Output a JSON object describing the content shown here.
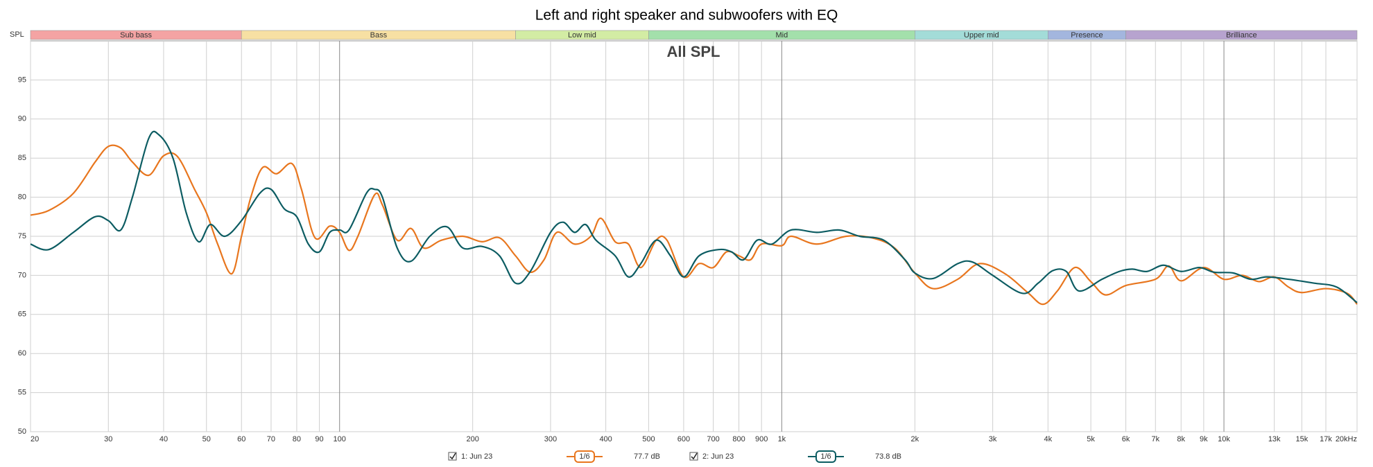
{
  "chart_data": {
    "type": "line",
    "title": "Left and right speaker and subwoofers with EQ",
    "annotation": "All SPL",
    "y_label": "SPL",
    "log_x": true,
    "grid": true,
    "xlim": [
      20,
      20000
    ],
    "ylim": [
      50,
      100
    ],
    "xticks": [
      20,
      30,
      40,
      50,
      60,
      70,
      80,
      90,
      100,
      200,
      300,
      400,
      500,
      600,
      700,
      800,
      900,
      {
        "value": 1000,
        "label": "1k"
      },
      {
        "value": 2000,
        "label": "2k"
      },
      {
        "value": 3000,
        "label": "3k"
      },
      {
        "value": 4000,
        "label": "4k"
      },
      {
        "value": 5000,
        "label": "5k"
      },
      {
        "value": 6000,
        "label": "6k"
      },
      {
        "value": 7000,
        "label": "7k"
      },
      {
        "value": 8000,
        "label": "8k"
      },
      {
        "value": 9000,
        "label": "9k"
      },
      {
        "value": 10000,
        "label": "10k"
      },
      {
        "value": 13000,
        "label": "13k"
      },
      {
        "value": 15000,
        "label": "15k"
      },
      {
        "value": 17000,
        "label": "17k"
      },
      {
        "value": 20000,
        "label": "20kHz"
      }
    ],
    "yticks": [
      50,
      55,
      60,
      65,
      70,
      75,
      80,
      85,
      90,
      95
    ],
    "bands": [
      {
        "name": "Sub bass",
        "from": 20,
        "to": 60,
        "color": "#f4a3a3"
      },
      {
        "name": "Bass",
        "from": 60,
        "to": 250,
        "color": "#f7e0a3"
      },
      {
        "name": "Low mid",
        "from": 250,
        "to": 500,
        "color": "#d3eca4"
      },
      {
        "name": "Mid",
        "from": 500,
        "to": 2000,
        "color": "#a3e0ab"
      },
      {
        "name": "Upper mid",
        "from": 2000,
        "to": 4000,
        "color": "#a3dcd8"
      },
      {
        "name": "Presence",
        "from": 4000,
        "to": 6000,
        "color": "#a3b6de"
      },
      {
        "name": "Brilliance",
        "from": 6000,
        "to": 20000,
        "color": "#b7a3cf"
      }
    ],
    "series": [
      {
        "name": "1: Jun 23",
        "color": "#e8761e",
        "smoothing": "1/6",
        "level": "77.7 dB",
        "x": [
          20,
          22,
          25,
          28,
          30,
          32,
          34,
          37,
          40,
          43,
          47,
          50,
          53,
          57,
          60,
          63,
          67,
          72,
          78,
          82,
          88,
          95,
          100,
          105,
          110,
          120,
          125,
          135,
          145,
          155,
          170,
          190,
          210,
          230,
          250,
          270,
          290,
          310,
          340,
          370,
          390,
          420,
          450,
          480,
          520,
          550,
          600,
          650,
          700,
          750,
          800,
          850,
          900,
          1000,
          1050,
          1200,
          1400,
          1600,
          1800,
          2000,
          2200,
          2500,
          2800,
          3200,
          3600,
          3900,
          4200,
          4600,
          5000,
          5400,
          6000,
          7000,
          7500,
          8000,
          9000,
          10000,
          11000,
          12000,
          13000,
          14000,
          15000,
          17000,
          19000,
          20000
        ],
        "values": [
          77.7,
          78.3,
          80.5,
          84.5,
          86.5,
          86.3,
          84.5,
          82.8,
          85.3,
          85.2,
          81,
          78,
          74,
          70.2,
          75,
          80,
          83.8,
          83,
          84.3,
          81,
          74.8,
          76.3,
          75.5,
          73.2,
          75,
          80.3,
          79,
          74.5,
          76,
          73.5,
          74.5,
          75,
          74.3,
          74.8,
          72.5,
          70.4,
          72,
          75.5,
          74,
          75,
          77.3,
          74.3,
          74,
          71,
          74.5,
          74.5,
          69.8,
          71.5,
          71,
          73,
          72.5,
          72,
          74,
          73.8,
          75,
          74,
          75,
          74.8,
          73.5,
          70.3,
          68.3,
          69.5,
          71.5,
          70.2,
          67.8,
          66.3,
          68,
          71,
          69.2,
          67.5,
          68.7,
          69.5,
          71.2,
          69.3,
          71,
          69.5,
          70,
          69.2,
          69.8,
          68.5,
          67.8,
          68.3,
          67.7,
          66.3
        ]
      },
      {
        "name": "2: Jun 23",
        "color": "#0c5c62",
        "smoothing": "1/6",
        "level": "73.8 dB",
        "x": [
          20,
          22,
          25,
          28,
          30,
          32,
          34,
          37,
          39,
          42,
          45,
          48,
          51,
          55,
          60,
          66,
          70,
          75,
          80,
          85,
          90,
          95,
          100,
          105,
          115,
          120,
          125,
          135,
          145,
          160,
          175,
          190,
          210,
          230,
          250,
          270,
          300,
          320,
          340,
          360,
          380,
          420,
          450,
          480,
          520,
          560,
          600,
          650,
          720,
          770,
          820,
          880,
          950,
          1050,
          1200,
          1350,
          1500,
          1700,
          1900,
          2000,
          2200,
          2500,
          2700,
          3000,
          3500,
          3800,
          4100,
          4400,
          4700,
          5300,
          5800,
          6200,
          6700,
          7300,
          8000,
          8800,
          9500,
          10500,
          11500,
          12500,
          14000,
          16000,
          18000,
          20000
        ],
        "values": [
          74,
          73.3,
          75.5,
          77.5,
          77,
          75.8,
          80,
          87.5,
          88,
          85,
          78,
          74.3,
          76.5,
          75,
          77,
          80.5,
          81,
          78.5,
          77.5,
          74,
          73,
          75.5,
          75.8,
          75.8,
          80.5,
          81,
          80,
          73.5,
          71.8,
          75,
          76.2,
          73.5,
          73.7,
          72.5,
          69,
          70.5,
          75.5,
          76.8,
          75.5,
          76.5,
          74.5,
          72.5,
          69.8,
          71.5,
          74.5,
          72.5,
          69.8,
          72.5,
          73.3,
          73,
          72,
          74.5,
          74,
          75.8,
          75.5,
          75.8,
          75,
          74.5,
          72,
          70.3,
          69.6,
          71.5,
          71.7,
          70,
          67.7,
          69,
          70.6,
          70.5,
          68,
          69.5,
          70.5,
          70.8,
          70.5,
          71.3,
          70.5,
          71,
          70.4,
          70.3,
          69.5,
          69.8,
          69.5,
          69,
          68.5,
          66.5
        ]
      }
    ]
  }
}
